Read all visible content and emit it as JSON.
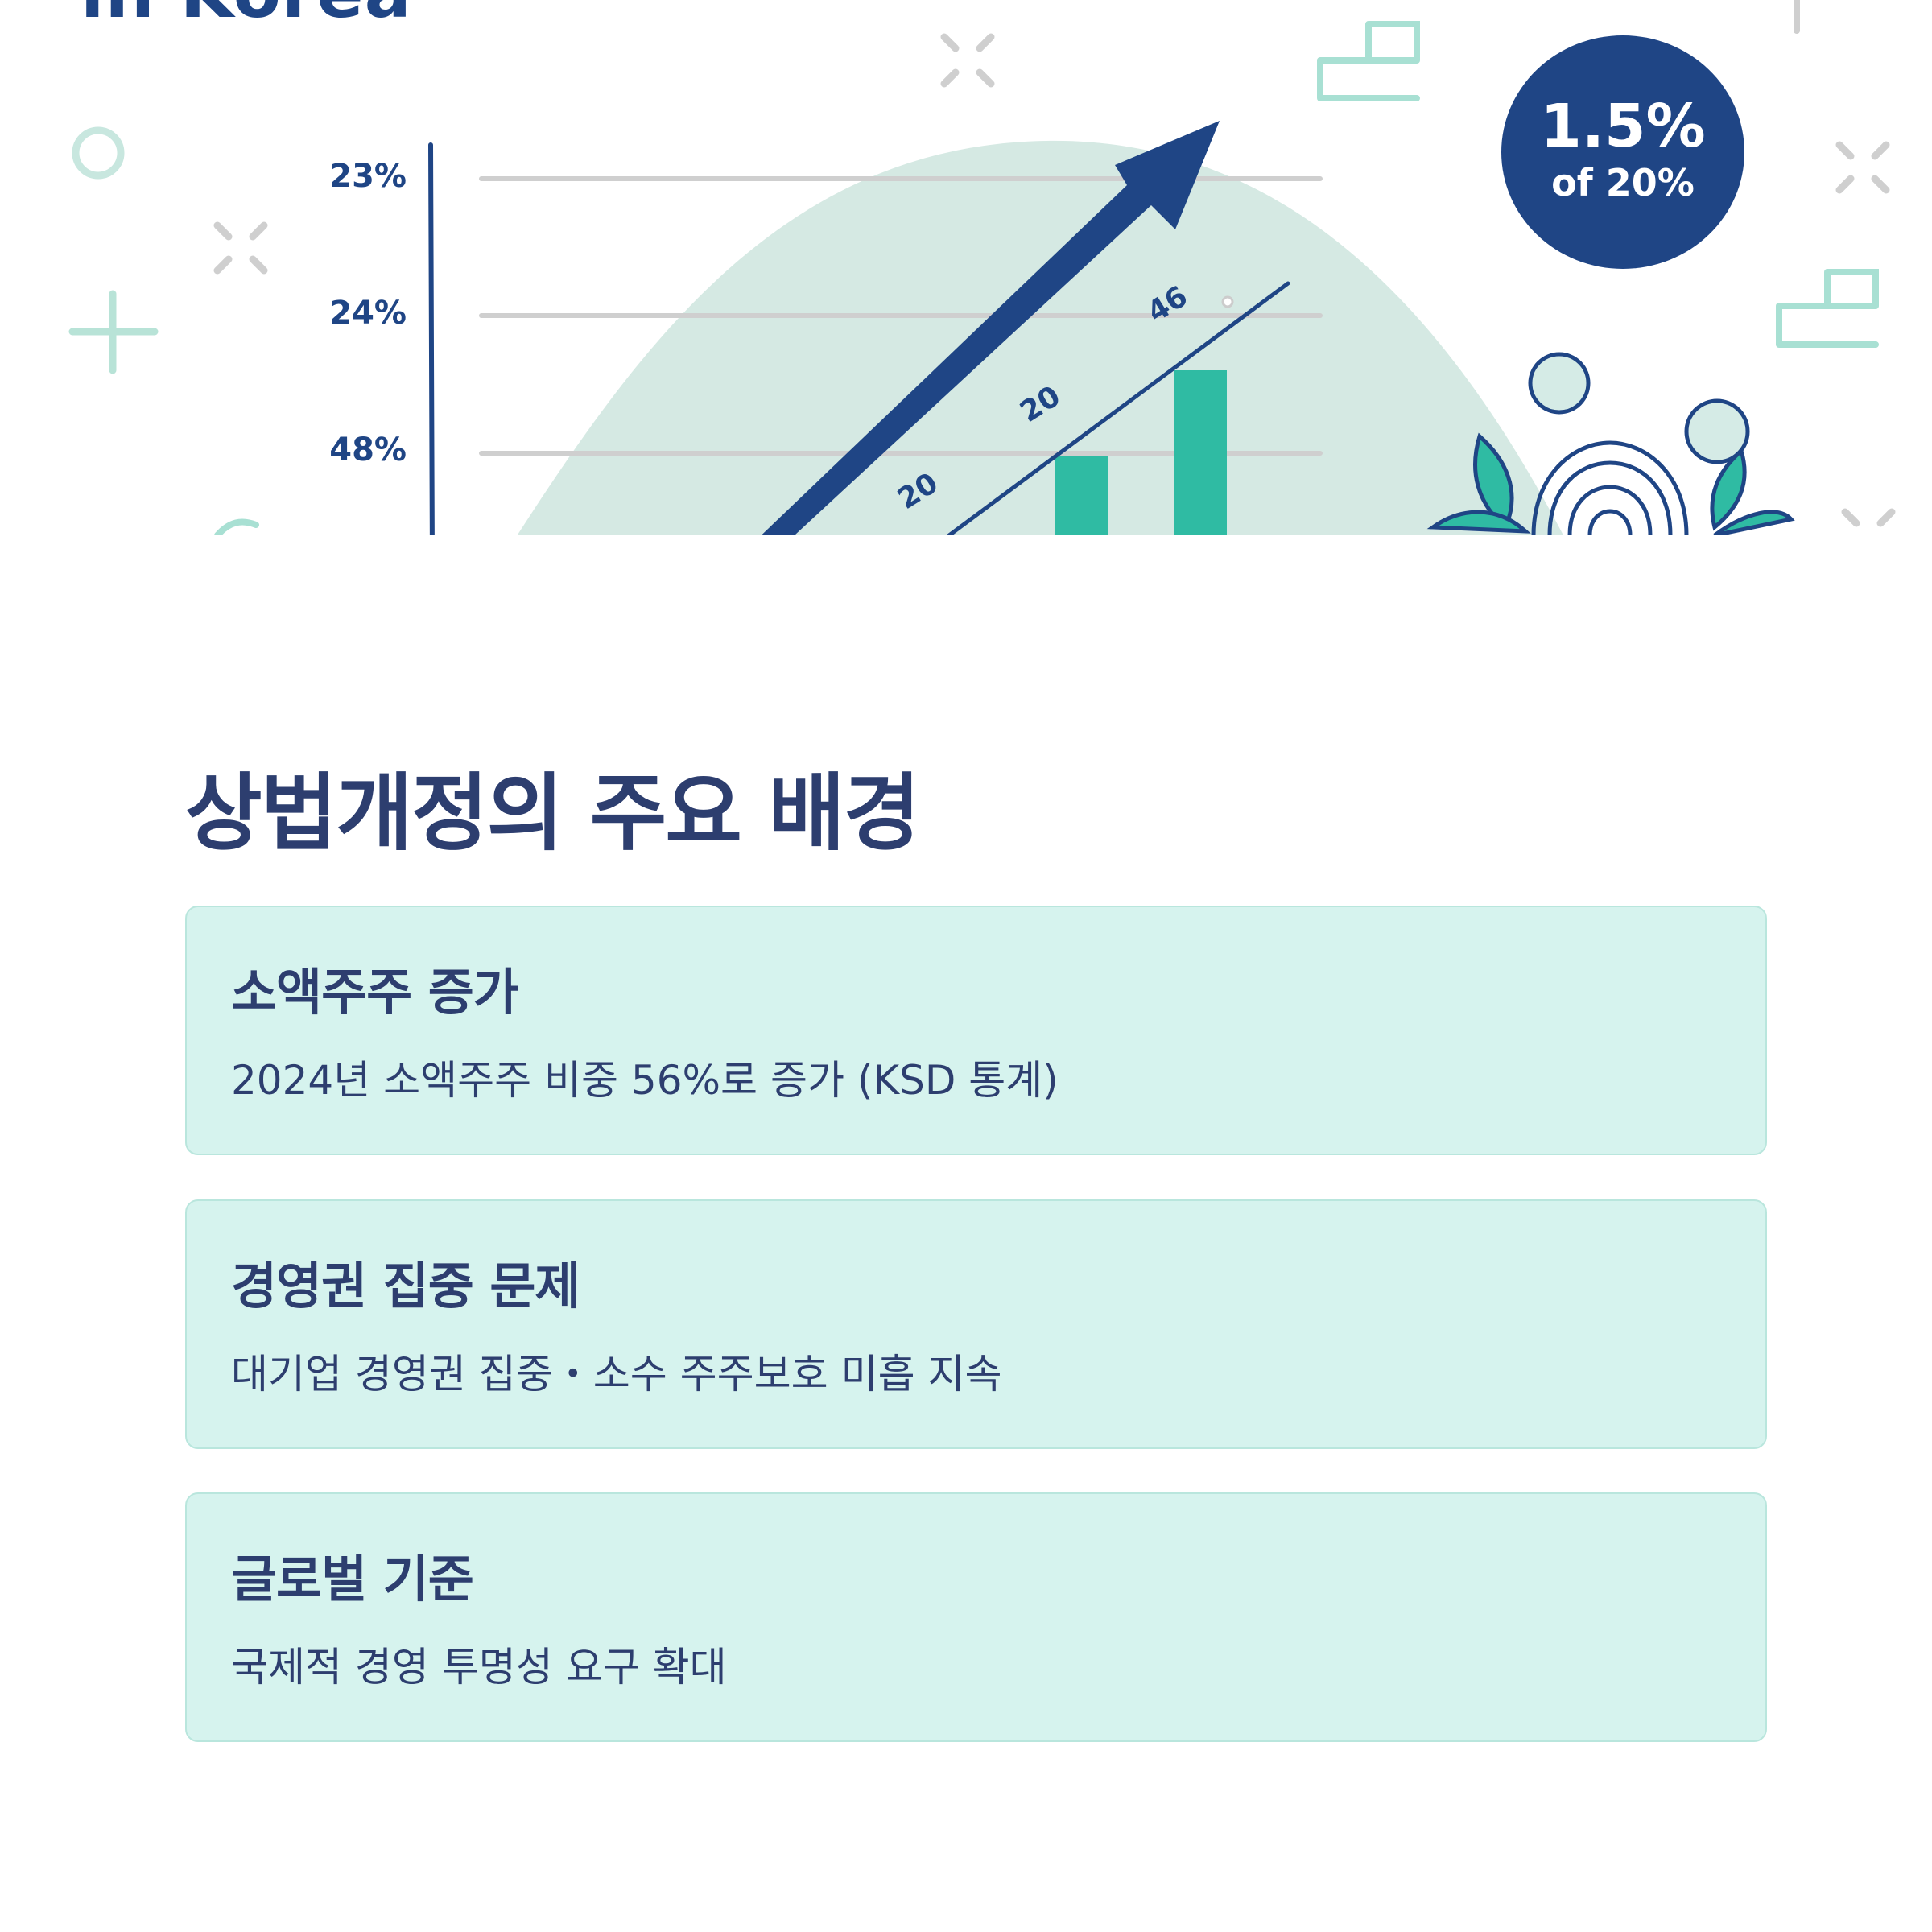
{
  "hero": {
    "title": "in Korea",
    "y_ticks": [
      "23%",
      "24%",
      "48%"
    ],
    "data_labels": [
      "20",
      "20",
      "46"
    ],
    "badge": {
      "main": "1.5%",
      "sub": "of 20%"
    },
    "colors": {
      "navy": "#1f4585",
      "teal": "#2fbba3",
      "mint": "#a8e0d3",
      "hill": "#d5e9e3"
    }
  },
  "section": {
    "title": "상법개정의 주요 배경",
    "cards": [
      {
        "title": "소액주주 증가",
        "desc": "2024년 소액주주 비중 56%로 증가 (KSD 통계)"
      },
      {
        "title": "경영권 집중 문제",
        "desc": "대기업 경영권 집중・소수 주주보호 미흡 지속"
      },
      {
        "title": "글로벌 기준",
        "desc": "국제적 경영 투명성 요구 확대"
      }
    ]
  }
}
